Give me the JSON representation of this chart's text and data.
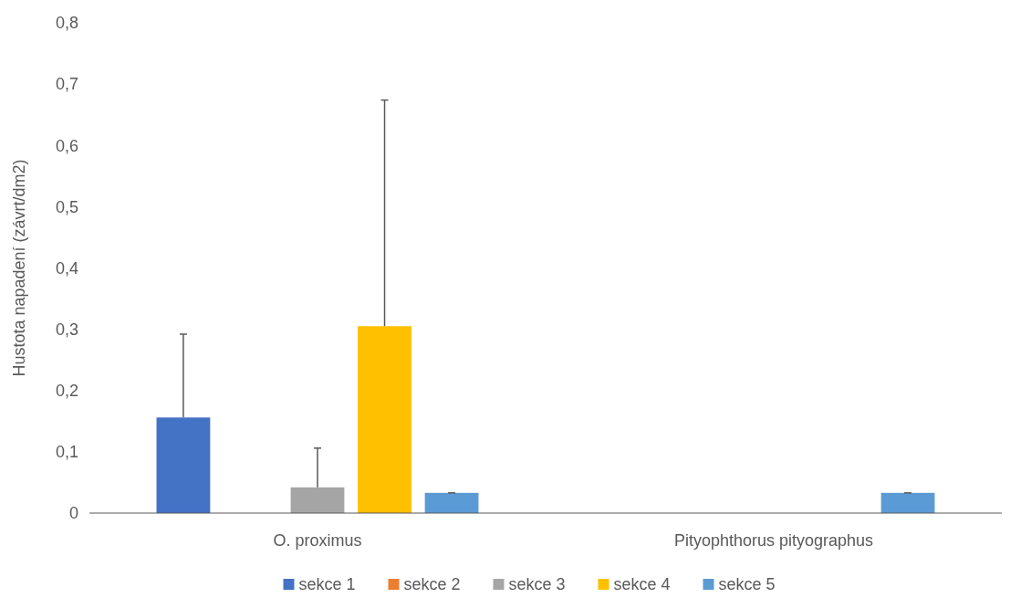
{
  "chart_data": {
    "type": "bar",
    "ylabel": "Hustota napadení (závrt/dm2)",
    "categories": [
      "O. proximus",
      "Pityophthorus pityographus"
    ],
    "series": [
      {
        "name": "sekce 1",
        "color": "#4472c4",
        "values": [
          0.156,
          0
        ],
        "errors": [
          [
            0.156,
            0.292
          ],
          null
        ]
      },
      {
        "name": "sekce 2",
        "color": "#ed7d31",
        "values": [
          0,
          0
        ],
        "errors": [
          null,
          null
        ]
      },
      {
        "name": "sekce 3",
        "color": "#a5a5a5",
        "values": [
          0.042,
          0
        ],
        "errors": [
          [
            0.042,
            0.106
          ],
          null
        ]
      },
      {
        "name": "sekce 4",
        "color": "#ffc000",
        "values": [
          0.305,
          0
        ],
        "errors": [
          [
            0.305,
            0.674
          ],
          null
        ]
      },
      {
        "name": "sekce 5",
        "color": "#5b9bd5",
        "values": [
          0.033,
          0.033
        ],
        "errors": [
          [
            0.033,
            0.033
          ],
          [
            0.033,
            0.033
          ]
        ]
      }
    ],
    "ylim": [
      0,
      0.8
    ],
    "yticks": [
      0,
      {
        "value": 0.1,
        "label": "0,1"
      },
      {
        "value": 0.2,
        "label": "0,2"
      },
      {
        "value": 0.3,
        "label": "0,3"
      },
      {
        "value": 0.4,
        "label": "0,4"
      },
      {
        "value": 0.5,
        "label": "0,5"
      },
      {
        "value": 0.6,
        "label": "0,6"
      },
      {
        "value": 0.7,
        "label": "0,7"
      },
      {
        "value": 0.8,
        "label": "0,8"
      }
    ],
    "grid": false,
    "legend": "bottom"
  }
}
